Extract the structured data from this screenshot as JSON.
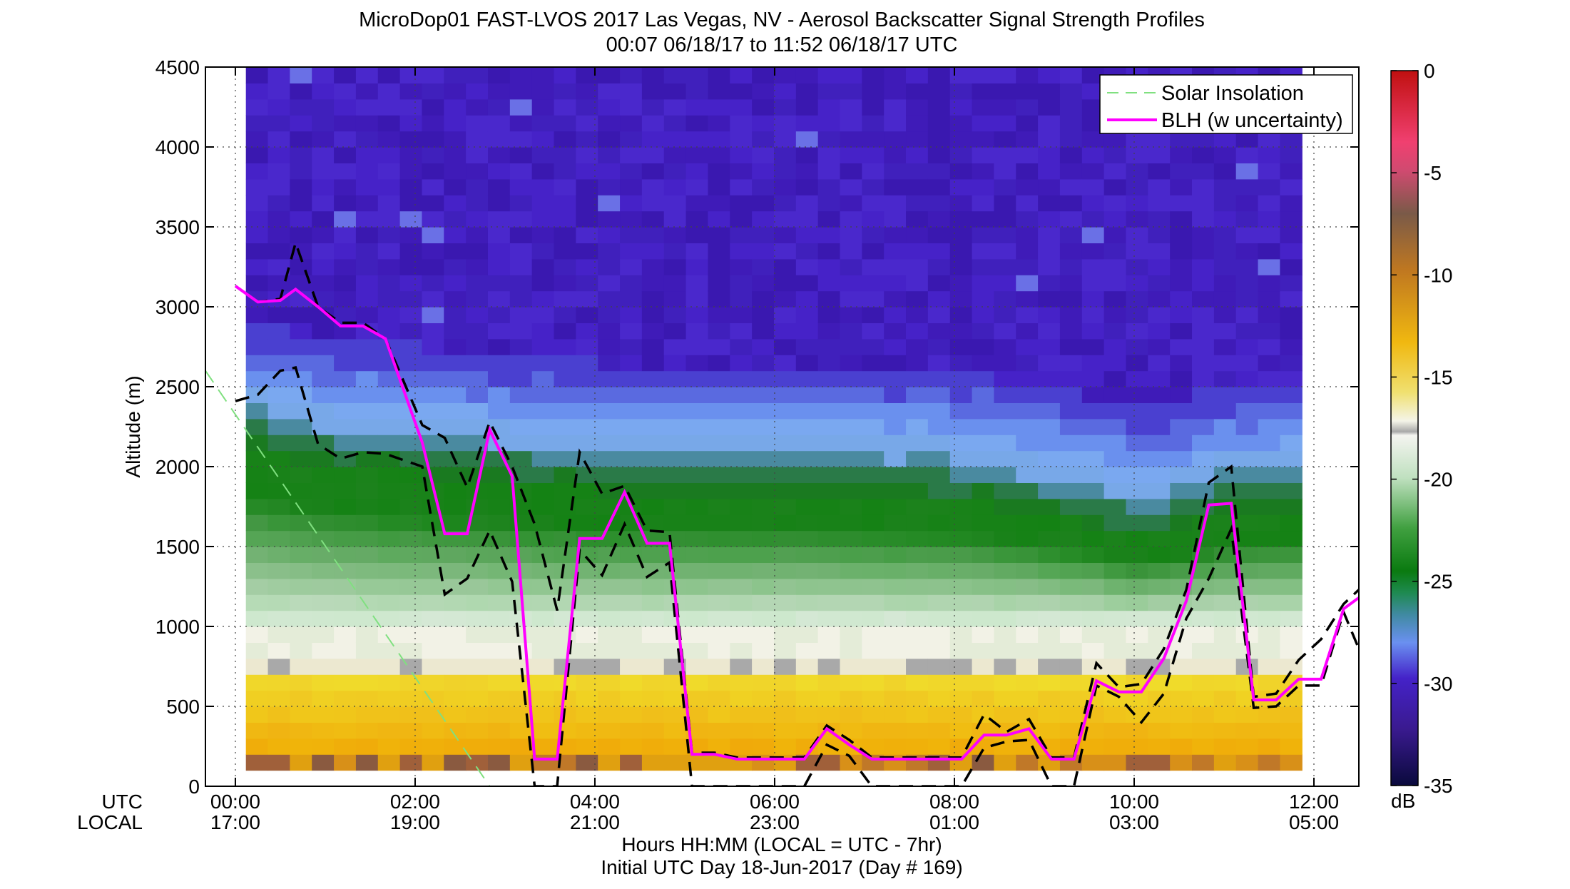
{
  "chart_data": {
    "type": "heatmap",
    "title": "MicroDop01 FAST-LVOS 2017 Las Vegas, NV - Aerosol Backscatter Signal Strength Profiles",
    "subtitle": "00:07 06/18/17 to 11:52 06/18/17  UTC",
    "xlabel": "Hours HH:MM  (LOCAL = UTC - 7hr)",
    "xlabel2": "Initial UTC Day 18-Jun-2017 (Day # 169)",
    "ylabel": "Altitude (m)",
    "xlim_hours": [
      -0.333,
      12.5
    ],
    "ylim": [
      0,
      4500
    ],
    "grid": true,
    "legend_position": "top-right",
    "xaxis_row_labels": [
      "UTC",
      "LOCAL"
    ],
    "x_ticks": [
      {
        "hour": 0,
        "utc": "00:00",
        "local": "17:00"
      },
      {
        "hour": 2,
        "utc": "02:00",
        "local": "19:00"
      },
      {
        "hour": 4,
        "utc": "04:00",
        "local": "21:00"
      },
      {
        "hour": 6,
        "utc": "06:00",
        "local": "23:00"
      },
      {
        "hour": 8,
        "utc": "08:00",
        "local": "01:00"
      },
      {
        "hour": 10,
        "utc": "10:00",
        "local": "03:00"
      },
      {
        "hour": 12,
        "utc": "12:00",
        "local": "05:00"
      }
    ],
    "y_ticks": [
      {
        "value": 0,
        "label": "0"
      },
      {
        "value": 500,
        "label": "500"
      },
      {
        "value": 1000,
        "label": "1000"
      },
      {
        "value": 1500,
        "label": "1500"
      },
      {
        "value": 2000,
        "label": "2000"
      },
      {
        "value": 2500,
        "label": "2500"
      },
      {
        "value": 3000,
        "label": "3000"
      },
      {
        "value": 3500,
        "label": "3500"
      },
      {
        "value": 4000,
        "label": "4000"
      },
      {
        "value": 4500,
        "label": "4500"
      }
    ],
    "colorbar": {
      "label": "dB",
      "range": [
        -35,
        0
      ],
      "ticks": [
        {
          "value": 0,
          "label": "0"
        },
        {
          "value": -5,
          "label": "-5"
        },
        {
          "value": -10,
          "label": "-10"
        },
        {
          "value": -15,
          "label": "-15"
        },
        {
          "value": -20,
          "label": "-20"
        },
        {
          "value": -25,
          "label": "-25"
        },
        {
          "value": -30,
          "label": "-30"
        },
        {
          "value": -35,
          "label": "-35"
        }
      ]
    },
    "heatmap_time_range_hours": [
      0.117,
      11.867
    ],
    "legend": [
      {
        "label": "Solar Insolation",
        "color": "#80e080",
        "style": "dashed"
      },
      {
        "label": "BLH (w uncertainty)",
        "color": "#ff00ff",
        "style": "solid"
      }
    ],
    "blh": {
      "x": [
        0.0,
        0.25,
        0.5,
        0.67,
        0.92,
        1.17,
        1.42,
        1.67,
        2.08,
        2.33,
        2.58,
        2.83,
        3.08,
        3.33,
        3.58,
        3.83,
        4.08,
        4.33,
        4.58,
        4.83,
        5.08,
        5.33,
        5.58,
        5.83,
        6.08,
        6.33,
        6.58,
        6.83,
        7.08,
        7.33,
        7.58,
        7.83,
        8.08,
        8.33,
        8.58,
        8.83,
        9.08,
        9.33,
        9.58,
        9.83,
        10.08,
        10.33,
        10.58,
        10.83,
        11.08,
        11.33,
        11.58,
        11.83,
        12.08,
        12.33,
        12.5
      ],
      "y": [
        3130,
        3030,
        3040,
        3110,
        3000,
        2880,
        2880,
        2800,
        2150,
        1580,
        1580,
        2230,
        1940,
        170,
        170,
        1550,
        1550,
        1840,
        1520,
        1520,
        200,
        200,
        170,
        170,
        170,
        170,
        360,
        260,
        170,
        170,
        170,
        170,
        170,
        320,
        320,
        360,
        170,
        170,
        660,
        590,
        590,
        800,
        1160,
        1760,
        1770,
        540,
        540,
        670,
        670,
        1110,
        1180
      ]
    },
    "blh_upper": {
      "x": [
        0.0,
        0.25,
        0.5,
        0.67,
        0.92,
        1.17,
        1.42,
        1.67,
        2.08,
        2.33,
        2.58,
        2.83,
        3.08,
        3.33,
        3.58,
        3.83,
        4.08,
        4.33,
        4.58,
        4.83,
        5.08,
        5.33,
        5.58,
        5.83,
        6.08,
        6.33,
        6.58,
        6.83,
        7.08,
        7.33,
        7.58,
        7.83,
        8.08,
        8.33,
        8.58,
        8.83,
        9.08,
        9.33,
        9.58,
        9.83,
        10.08,
        10.33,
        10.58,
        10.83,
        11.08,
        11.33,
        11.58,
        11.83,
        12.08,
        12.33,
        12.5
      ],
      "y": [
        3130,
        3030,
        3050,
        3400,
        3000,
        2900,
        2900,
        2800,
        2260,
        2180,
        1870,
        2280,
        2000,
        1640,
        1100,
        2090,
        1830,
        1880,
        1600,
        1590,
        210,
        210,
        180,
        180,
        180,
        180,
        380,
        290,
        180,
        180,
        180,
        180,
        180,
        450,
        340,
        420,
        180,
        180,
        770,
        620,
        640,
        860,
        1230,
        1900,
        2000,
        560,
        580,
        790,
        920,
        1140,
        1230
      ]
    },
    "blh_lower": {
      "x": [
        0.0,
        0.25,
        0.5,
        0.67,
        0.92,
        1.17,
        1.42,
        1.67,
        2.08,
        2.33,
        2.58,
        2.83,
        3.08,
        3.33,
        3.58,
        3.83,
        4.08,
        4.33,
        4.58,
        4.83,
        5.08,
        5.33,
        5.58,
        5.83,
        6.08,
        6.33,
        6.58,
        6.83,
        7.08,
        7.33,
        7.58,
        7.83,
        8.08,
        8.33,
        8.58,
        8.83,
        9.08,
        9.33,
        9.58,
        9.83,
        10.08,
        10.33,
        10.58,
        10.83,
        11.08,
        11.33,
        11.58,
        11.83,
        12.08,
        12.33,
        12.5
      ],
      "y": [
        2410,
        2450,
        2600,
        2620,
        2140,
        2050,
        2090,
        2080,
        2000,
        1200,
        1300,
        1600,
        1280,
        0,
        0,
        1480,
        1320,
        1640,
        1310,
        1400,
        0,
        0,
        0,
        0,
        0,
        0,
        260,
        190,
        0,
        0,
        0,
        0,
        0,
        240,
        280,
        290,
        0,
        0,
        630,
        560,
        400,
        580,
        1050,
        1300,
        1610,
        490,
        500,
        630,
        630,
        1090,
        860
      ]
    },
    "solar_insolation": {
      "x": [
        -0.333,
        2.83
      ],
      "y": [
        2600,
        0
      ]
    }
  }
}
